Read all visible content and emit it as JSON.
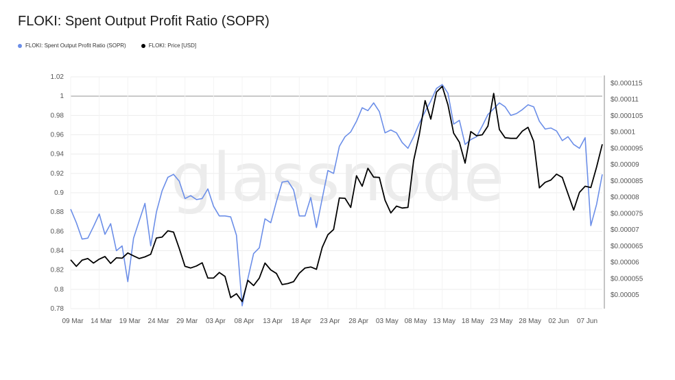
{
  "chart_data": {
    "type": "line",
    "title": "FLOKI: Spent Output Profit Ratio (SOPR)",
    "watermark": "glassnode",
    "colors": {
      "sopr": "#6b8ee8",
      "price": "#000000",
      "grid": "#ececec",
      "refline": "#999999"
    },
    "x_ticks": [
      "09 Mar",
      "14 Mar",
      "19 Mar",
      "24 Mar",
      "29 Mar",
      "03 Apr",
      "08 Apr",
      "13 Apr",
      "18 Apr",
      "23 Apr",
      "28 Apr",
      "03 May",
      "08 May",
      "13 May",
      "18 May",
      "23 May",
      "28 May",
      "02 Jun",
      "07 Jun"
    ],
    "y_left": {
      "ylim": [
        0.78,
        1.02
      ],
      "ticks": [
        "1.02",
        "1",
        "0.98",
        "0.96",
        "0.94",
        "0.92",
        "0.9",
        "0.88",
        "0.86",
        "0.84",
        "0.82",
        "0.8",
        "0.78"
      ]
    },
    "y_right": {
      "ylim": [
        4.58e-05,
        0.000117
      ],
      "ticks": [
        "$0.000115",
        "$0.00011",
        "$0.000105",
        "$0.0001",
        "$0.000095",
        "$0.00009",
        "$0.000085",
        "$0.00008",
        "$0.000075",
        "$0.00007",
        "$0.000065",
        "$0.00006",
        "$0.000055",
        "$0.00005"
      ]
    },
    "reference_line": 1,
    "series": [
      {
        "name": "FLOKI: Spent Output Profit Ratio (SOPR)",
        "axis": "left",
        "values": [
          0.883,
          0.869,
          0.852,
          0.853,
          0.865,
          0.878,
          0.857,
          0.868,
          0.84,
          0.845,
          0.808,
          0.853,
          0.871,
          0.889,
          0.845,
          0.88,
          0.902,
          0.916,
          0.919,
          0.912,
          0.894,
          0.897,
          0.893,
          0.894,
          0.904,
          0.886,
          0.876,
          0.876,
          0.875,
          0.856,
          0.783,
          0.811,
          0.837,
          0.843,
          0.873,
          0.869,
          0.891,
          0.911,
          0.912,
          0.903,
          0.876,
          0.876,
          0.895,
          0.864,
          0.894,
          0.923,
          0.92,
          0.948,
          0.958,
          0.963,
          0.974,
          0.988,
          0.985,
          0.993,
          0.984,
          0.962,
          0.965,
          0.962,
          0.952,
          0.946,
          0.958,
          0.972,
          0.984,
          0.995,
          1.008,
          1.012,
          1.003,
          0.971,
          0.975,
          0.95,
          0.955,
          0.958,
          0.969,
          0.981,
          0.987,
          0.993,
          0.989,
          0.98,
          0.982,
          0.986,
          0.991,
          0.989,
          0.974,
          0.966,
          0.967,
          0.964,
          0.954,
          0.958,
          0.95,
          0.946,
          0.957,
          0.866,
          0.888,
          0.919
        ]
      },
      {
        "name": "FLOKI: Price [USD]",
        "axis": "right",
        "values": [
          6.08e-05,
          5.88e-05,
          6.07e-05,
          6.12e-05,
          5.98e-05,
          6.1e-05,
          6.18e-05,
          5.97e-05,
          6.14e-05,
          6.13e-05,
          6.29e-05,
          6.2e-05,
          6.12e-05,
          6.17e-05,
          6.25e-05,
          6.75e-05,
          6.78e-05,
          6.97e-05,
          6.93e-05,
          6.43e-05,
          5.88e-05,
          5.83e-05,
          5.89e-05,
          5.99e-05,
          5.52e-05,
          5.52e-05,
          5.69e-05,
          5.57e-05,
          4.92e-05,
          5.04e-05,
          4.8e-05,
          5.45e-05,
          5.29e-05,
          5.52e-05,
          5.98e-05,
          5.77e-05,
          5.66e-05,
          5.32e-05,
          5.35e-05,
          5.41e-05,
          5.67e-05,
          5.83e-05,
          5.86e-05,
          5.79e-05,
          6.46e-05,
          6.85e-05,
          7.01e-05,
          7.98e-05,
          7.97e-05,
          7.69e-05,
          8.66e-05,
          8.34e-05,
          8.89e-05,
          8.62e-05,
          8.61e-05,
          7.91e-05,
          7.52e-05,
          7.73e-05,
          7.67e-05,
          7.69e-05,
          9.13e-05,
          9.93e-05,
          0.0001097,
          0.000104,
          0.0001123,
          0.0001141,
          0.0001084,
          9.97e-05,
          9.69e-05,
          9.05e-05,
          0.0001002,
          9.89e-05,
          9.92e-05,
          0.0001019,
          0.0001119,
          0.0001008,
          9.83e-05,
          9.81e-05,
          9.81e-05,
          0.0001003,
          0.0001015,
          9.72e-05,
          8.29e-05,
          8.46e-05,
          8.53e-05,
          8.71e-05,
          8.61e-05,
          8.11e-05,
          7.61e-05,
          8.15e-05,
          8.34e-05,
          8.3e-05,
          8.93e-05,
          9.63e-05
        ]
      }
    ]
  }
}
